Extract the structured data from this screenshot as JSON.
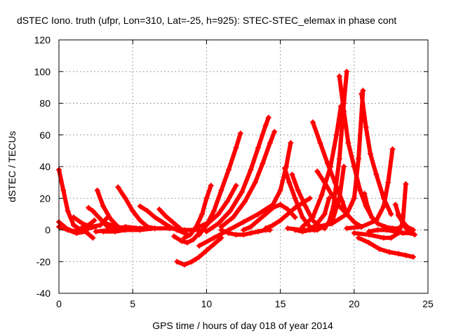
{
  "chart_data": {
    "type": "line",
    "title": "dSTEC Iono. truth (ufpr, Lon=310, Lat=-25, h=925): STEC-STEC_elemax in phase cont",
    "xlabel": "GPS time / hours of day 018 of year 2014",
    "ylabel": "dSTEC  / TECUs",
    "xlim": [
      0,
      25
    ],
    "ylim": [
      -40,
      120
    ],
    "xticks": [
      0,
      5,
      10,
      15,
      20,
      25
    ],
    "yticks": [
      -40,
      -20,
      0,
      20,
      40,
      60,
      80,
      100,
      120
    ],
    "grid": true,
    "marker": "plus",
    "color": "#ff0000",
    "series": [
      {
        "x": [
          0.0,
          0.3,
          0.6,
          1.0,
          1.5,
          2.0,
          2.5
        ],
        "y": [
          38,
          25,
          12,
          3,
          0,
          1,
          2
        ]
      },
      {
        "x": [
          0.0,
          0.5,
          1.0,
          1.5,
          2.0,
          2.4
        ],
        "y": [
          5,
          1,
          -1,
          1,
          3,
          6
        ]
      },
      {
        "x": [
          0.0,
          0.6,
          1.2,
          1.8,
          2.3
        ],
        "y": [
          2,
          0,
          -2,
          -1,
          -5
        ]
      },
      {
        "x": [
          2.0,
          2.3,
          2.7,
          3.2,
          3.5
        ],
        "y": [
          14,
          12,
          8,
          3,
          0
        ]
      },
      {
        "x": [
          2.6,
          3.0,
          3.5,
          4.0,
          4.5
        ],
        "y": [
          25,
          15,
          7,
          2,
          0
        ]
      },
      {
        "x": [
          1.0,
          1.6,
          2.2,
          2.8,
          3.3
        ],
        "y": [
          8,
          4,
          2,
          3,
          8
        ]
      },
      {
        "x": [
          2.5,
          3.5,
          4.5,
          5.5,
          6.2
        ],
        "y": [
          -1,
          0,
          2,
          1,
          1
        ]
      },
      {
        "x": [
          4.0,
          4.5,
          5.0,
          5.5,
          6.0,
          6.5
        ],
        "y": [
          27,
          20,
          12,
          6,
          2,
          1
        ]
      },
      {
        "x": [
          3.0,
          3.5,
          4.0,
          4.5
        ],
        "y": [
          5,
          3,
          2,
          1
        ]
      },
      {
        "x": [
          3.0,
          3.8,
          4.5,
          5.5,
          6.5,
          7.5,
          8.5,
          9.5
        ],
        "y": [
          -1,
          -1,
          0,
          0,
          1,
          1,
          0,
          0
        ]
      },
      {
        "x": [
          5.5,
          6.0,
          6.5,
          7.0,
          7.5,
          8.0,
          8.5
        ],
        "y": [
          15,
          12,
          8,
          5,
          2,
          0,
          -2
        ]
      },
      {
        "x": [
          6.8,
          7.2,
          7.7,
          8.2,
          8.6
        ],
        "y": [
          13,
          9,
          5,
          1,
          -2
        ]
      },
      {
        "x": [
          7.8,
          8.3,
          8.7,
          9.1,
          9.5
        ],
        "y": [
          -4,
          -7,
          -8,
          -6,
          -2
        ]
      },
      {
        "x": [
          8.5,
          8.9,
          9.3,
          9.7,
          10.0,
          10.3
        ],
        "y": [
          -5,
          -3,
          2,
          10,
          20,
          28
        ]
      },
      {
        "x": [
          8.0,
          8.5,
          9.0,
          9.5,
          10.0,
          10.5,
          11.0
        ],
        "y": [
          -20,
          -22,
          -20,
          -17,
          -13,
          -9,
          -5
        ]
      },
      {
        "x": [
          9.5,
          10.0,
          10.5,
          11.0,
          11.5,
          12.0,
          12.3
        ],
        "y": [
          -3,
          3,
          12,
          25,
          38,
          52,
          61
        ]
      },
      {
        "x": [
          9.5,
          10.2,
          10.8,
          11.4,
          12.0
        ],
        "y": [
          2,
          5,
          10,
          18,
          28
        ]
      },
      {
        "x": [
          10.0,
          10.8,
          11.6,
          12.4,
          13.0,
          13.5,
          14.0,
          14.2
        ],
        "y": [
          -1,
          4,
          12,
          24,
          38,
          52,
          66,
          71
        ]
      },
      {
        "x": [
          11.0,
          11.8,
          12.6,
          13.3,
          13.8,
          14.3,
          14.6
        ],
        "y": [
          2,
          8,
          18,
          30,
          42,
          55,
          62
        ]
      },
      {
        "x": [
          11.0,
          11.5,
          12.0,
          12.5,
          13.0,
          13.5,
          14.0,
          14.3
        ],
        "y": [
          0,
          -2,
          -3,
          -3,
          -2,
          -1,
          0,
          0
        ]
      },
      {
        "x": [
          9.5,
          10.5,
          11.5,
          12.5,
          13.5,
          14.5,
          15.0,
          15.4,
          15.7
        ],
        "y": [
          -10,
          -5,
          0,
          5,
          10,
          16,
          25,
          40,
          55
        ]
      },
      {
        "x": [
          12.5,
          13.0,
          13.5,
          14.0,
          14.5,
          15.0,
          15.5,
          16.0
        ],
        "y": [
          0,
          2,
          6,
          10,
          14,
          16,
          13,
          8
        ]
      },
      {
        "x": [
          14.0,
          14.5,
          15.0,
          15.5,
          16.0,
          16.5,
          17.0
        ],
        "y": [
          1,
          3,
          6,
          10,
          14,
          17,
          20
        ]
      },
      {
        "x": [
          15.3,
          15.6,
          16.0,
          16.5,
          17.0,
          17.3
        ],
        "y": [
          39,
          30,
          20,
          8,
          2,
          0
        ]
      },
      {
        "x": [
          15.8,
          16.2,
          16.7,
          17.2,
          17.7,
          18.0
        ],
        "y": [
          35,
          25,
          15,
          6,
          2,
          1
        ]
      },
      {
        "x": [
          16.0,
          16.5,
          17.0,
          17.5,
          18.0,
          18.3
        ],
        "y": [
          0,
          -1,
          0,
          4,
          10,
          20
        ]
      },
      {
        "x": [
          15.5,
          16.5,
          17.5,
          18.5,
          19.0,
          19.3
        ],
        "y": [
          1,
          0,
          0,
          5,
          20,
          40
        ]
      },
      {
        "x": [
          17.2,
          17.7,
          18.2,
          18.7,
          19.2,
          19.5
        ],
        "y": [
          68,
          55,
          42,
          30,
          18,
          10
        ]
      },
      {
        "x": [
          16.5,
          17.2,
          17.8,
          18.4,
          18.8,
          19.1
        ],
        "y": [
          2,
          8,
          22,
          40,
          60,
          78
        ]
      },
      {
        "x": [
          17.5,
          18.0,
          18.5,
          19.0,
          19.5,
          20.0,
          20.5
        ],
        "y": [
          37,
          30,
          22,
          15,
          10,
          5,
          2
        ]
      },
      {
        "x": [
          18.0,
          18.3,
          18.6,
          19.0,
          19.3,
          19.5
        ],
        "y": [
          1,
          5,
          15,
          45,
          80,
          100
        ]
      },
      {
        "x": [
          19.0,
          19.3,
          19.6,
          20.0,
          20.4,
          20.8,
          21.2
        ],
        "y": [
          97,
          75,
          55,
          40,
          25,
          15,
          8
        ]
      },
      {
        "x": [
          17.5,
          18.5,
          19.5,
          20.0,
          20.3,
          20.6
        ],
        "y": [
          2,
          4,
          10,
          20,
          45,
          88
        ]
      },
      {
        "x": [
          20.5,
          20.8,
          21.1,
          21.5,
          22.0,
          22.5
        ],
        "y": [
          86,
          65,
          48,
          35,
          20,
          10
        ]
      },
      {
        "x": [
          19.5,
          20.5,
          21.5,
          22.0,
          22.3,
          22.6
        ],
        "y": [
          1,
          2,
          6,
          15,
          30,
          51
        ]
      },
      {
        "x": [
          20.0,
          21.0,
          22.0,
          22.5,
          23.0,
          23.3,
          23.5
        ],
        "y": [
          -2,
          -3,
          -5,
          -5,
          -2,
          5,
          29
        ]
      },
      {
        "x": [
          20.3,
          21.0,
          21.7,
          22.4,
          23.0,
          23.5,
          24.0
        ],
        "y": [
          -5,
          -8,
          -12,
          -14,
          -15,
          -16,
          -17
        ]
      },
      {
        "x": [
          20.7,
          20.9,
          21.2,
          21.6,
          22.1,
          22.6,
          23.0
        ],
        "y": [
          23,
          15,
          8,
          4,
          2,
          1,
          1
        ]
      },
      {
        "x": [
          22.8,
          23.0,
          23.3,
          23.6,
          23.9,
          24.1
        ],
        "y": [
          16,
          10,
          4,
          0,
          -2,
          -3
        ]
      },
      {
        "x": [
          23.0,
          23.3,
          23.6,
          24.0
        ],
        "y": [
          9,
          5,
          2,
          0
        ]
      },
      {
        "x": [
          21.0,
          21.6,
          22.2,
          22.8,
          23.3,
          23.8
        ],
        "y": [
          -1,
          0,
          0,
          -1,
          -2,
          -2
        ]
      }
    ]
  }
}
